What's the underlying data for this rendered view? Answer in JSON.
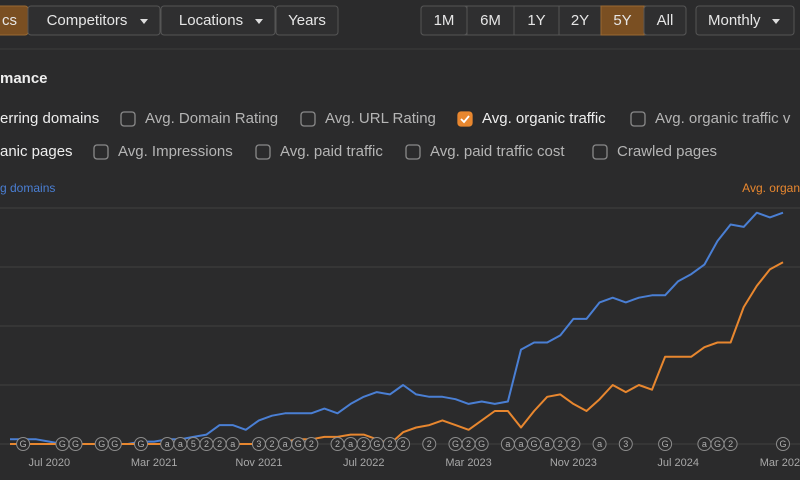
{
  "toolbar": {
    "tabs": [
      {
        "label": "cs",
        "active": true
      },
      {
        "label": "Competitors",
        "dropdown": true
      },
      {
        "label": "Locations",
        "dropdown": true
      },
      {
        "label": "Years"
      }
    ],
    "ranges": [
      {
        "label": "1M"
      },
      {
        "label": "6M"
      },
      {
        "label": "1Y"
      },
      {
        "label": "2Y"
      },
      {
        "label": "5Y",
        "active": true
      },
      {
        "label": "All"
      }
    ],
    "interval": {
      "label": "Monthly",
      "dropdown": true
    }
  },
  "section_title": "mance",
  "metrics": [
    [
      {
        "label": "erring domains"
      },
      {
        "label": "Avg. Domain Rating",
        "checked": false
      },
      {
        "label": "Avg. URL Rating",
        "checked": false
      },
      {
        "label": "Avg. organic traffic",
        "checked": true
      },
      {
        "label": "Avg. organic traffic v",
        "checked": false
      }
    ],
    [
      {
        "label": "anic pages"
      },
      {
        "label": "Avg. Impressions",
        "checked": false
      },
      {
        "label": "Avg. paid traffic",
        "checked": false
      },
      {
        "label": "Avg. paid traffic cost",
        "checked": false
      },
      {
        "label": "Crawled pages",
        "checked": false
      }
    ]
  ],
  "chart_data": {
    "type": "line",
    "x": [
      "2020-04",
      "2020-05",
      "2020-06",
      "2020-07",
      "2020-08",
      "2020-09",
      "2020-10",
      "2020-11",
      "2020-12",
      "2021-01",
      "2021-02",
      "2021-03",
      "2021-04",
      "2021-05",
      "2021-06",
      "2021-07",
      "2021-08",
      "2021-09",
      "2021-10",
      "2021-11",
      "2021-12",
      "2022-01",
      "2022-02",
      "2022-03",
      "2022-04",
      "2022-05",
      "2022-06",
      "2022-07",
      "2022-08",
      "2022-09",
      "2022-10",
      "2022-11",
      "2022-12",
      "2023-01",
      "2023-02",
      "2023-03",
      "2023-04",
      "2023-05",
      "2023-06",
      "2023-07",
      "2023-08",
      "2023-09",
      "2023-10",
      "2023-11",
      "2023-12",
      "2024-01",
      "2024-02",
      "2024-03",
      "2024-04",
      "2024-05",
      "2024-06",
      "2024-07",
      "2024-08",
      "2024-09",
      "2024-10",
      "2024-11",
      "2024-12",
      "2025-01",
      "2025-02",
      "2025-03"
    ],
    "xticks": [
      {
        "value": "2020-07",
        "label": "Jul 2020"
      },
      {
        "value": "2021-03",
        "label": "Mar 2021"
      },
      {
        "value": "2021-11",
        "label": "Nov 2021"
      },
      {
        "value": "2022-07",
        "label": "Jul 2022"
      },
      {
        "value": "2023-03",
        "label": "Mar 2023"
      },
      {
        "value": "2023-11",
        "label": "Nov 2023"
      },
      {
        "value": "2024-07",
        "label": "Jul 2024"
      },
      {
        "value": "2025-03",
        "label": "Mar 2025"
      }
    ],
    "ylim": [
      0,
      100
    ],
    "yticks": [
      0,
      25,
      50,
      75,
      100
    ],
    "y2lim": [
      0,
      100
    ],
    "grid": true,
    "series": [
      {
        "name": "g domains",
        "color": "#4a7fd4",
        "values": [
          2,
          2,
          2,
          1,
          0,
          0,
          0,
          0,
          0,
          0,
          1,
          1,
          2,
          2,
          3,
          4,
          8,
          8,
          6,
          10,
          12,
          13,
          13,
          13,
          15,
          13,
          17,
          20,
          22,
          21,
          25,
          21,
          20,
          20,
          19,
          17,
          18,
          17,
          18,
          40,
          43,
          43,
          46,
          53,
          53,
          60,
          62,
          60,
          62,
          63,
          63,
          69,
          72,
          76,
          86,
          93,
          92,
          98,
          96,
          98
        ]
      },
      {
        "name": "Avg. organ",
        "color": "#e8872f",
        "axis": "y2",
        "values": [
          0,
          0,
          0,
          0,
          0,
          0,
          0,
          0,
          0,
          0,
          0,
          0,
          0,
          0,
          0,
          0,
          0,
          0,
          0,
          0,
          0,
          1,
          2,
          2,
          3,
          3,
          4,
          4,
          2,
          0,
          5,
          7,
          8,
          10,
          8,
          6,
          10,
          14,
          14,
          7,
          14,
          20,
          21,
          17,
          14,
          19,
          25,
          22,
          25,
          23,
          37,
          37,
          37,
          41,
          43,
          43,
          58,
          67,
          74,
          77
        ]
      }
    ],
    "annotations": [
      {
        "x": "2020-05",
        "label": "G"
      },
      {
        "x": "2020-08",
        "label": "G"
      },
      {
        "x": "2020-09",
        "label": "G"
      },
      {
        "x": "2020-11",
        "label": "G"
      },
      {
        "x": "2020-12",
        "label": "G"
      },
      {
        "x": "2021-02",
        "label": "G"
      },
      {
        "x": "2021-04",
        "label": "a"
      },
      {
        "x": "2021-05",
        "label": "a"
      },
      {
        "x": "2021-06",
        "label": "5"
      },
      {
        "x": "2021-07",
        "label": "2"
      },
      {
        "x": "2021-08",
        "label": "2"
      },
      {
        "x": "2021-09",
        "label": "a"
      },
      {
        "x": "2021-11",
        "label": "3"
      },
      {
        "x": "2021-12",
        "label": "2"
      },
      {
        "x": "2022-01",
        "label": "a"
      },
      {
        "x": "2022-02",
        "label": "G"
      },
      {
        "x": "2022-03",
        "label": "2"
      },
      {
        "x": "2022-05",
        "label": "2"
      },
      {
        "x": "2022-06",
        "label": "a"
      },
      {
        "x": "2022-07",
        "label": "2"
      },
      {
        "x": "2022-08",
        "label": "G"
      },
      {
        "x": "2022-09",
        "label": "2"
      },
      {
        "x": "2022-10",
        "label": "2"
      },
      {
        "x": "2022-12",
        "label": "2"
      },
      {
        "x": "2023-02",
        "label": "G"
      },
      {
        "x": "2023-03",
        "label": "2"
      },
      {
        "x": "2023-04",
        "label": "G"
      },
      {
        "x": "2023-06",
        "label": "a"
      },
      {
        "x": "2023-07",
        "label": "a"
      },
      {
        "x": "2023-08",
        "label": "G"
      },
      {
        "x": "2023-09",
        "label": "a"
      },
      {
        "x": "2023-10",
        "label": "2"
      },
      {
        "x": "2023-11",
        "label": "2"
      },
      {
        "x": "2024-01",
        "label": "a"
      },
      {
        "x": "2024-03",
        "label": "3"
      },
      {
        "x": "2024-06",
        "label": "G"
      },
      {
        "x": "2024-09",
        "label": "a"
      },
      {
        "x": "2024-10",
        "label": "G"
      },
      {
        "x": "2024-11",
        "label": "2"
      },
      {
        "x": "2025-03",
        "label": "G"
      }
    ]
  }
}
